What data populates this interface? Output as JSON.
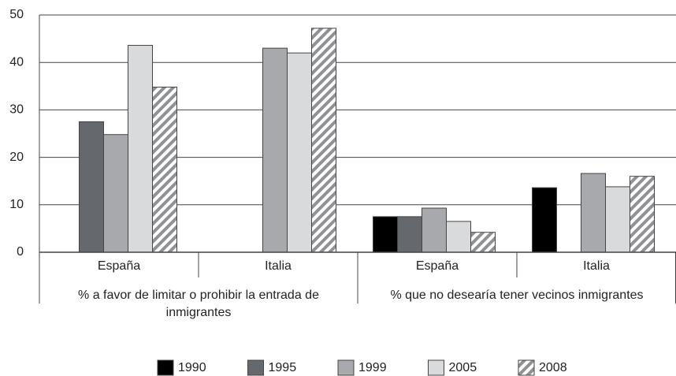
{
  "chart_data": {
    "type": "bar",
    "groups": [
      {
        "label": "% a favor de limitar o prohibir la entrada de inmigrantes",
        "categories": [
          "España",
          "Italia"
        ]
      },
      {
        "label": "% que no desearía tener vecinos inmigrantes",
        "categories": [
          "España",
          "Italia"
        ]
      }
    ],
    "series": [
      {
        "name": "1990",
        "color": "#000000",
        "values": [
          null,
          null,
          7.5,
          13.6
        ]
      },
      {
        "name": "1995",
        "color": "#65686c",
        "values": [
          27.5,
          null,
          7.5,
          null
        ]
      },
      {
        "name": "1999",
        "color": "#a7a9ac",
        "values": [
          24.8,
          43,
          9.3,
          16.6
        ]
      },
      {
        "name": "2005",
        "color": "#d9dadb",
        "values": [
          43.6,
          42,
          6.5,
          13.8
        ]
      },
      {
        "name": "2008",
        "color": "#8f9194",
        "hatch": true,
        "values": [
          34.8,
          47.2,
          4.2,
          16
        ]
      }
    ],
    "ylim": [
      0,
      50
    ],
    "yticks": [
      0,
      10,
      20,
      30,
      40,
      50
    ],
    "grid": true
  }
}
